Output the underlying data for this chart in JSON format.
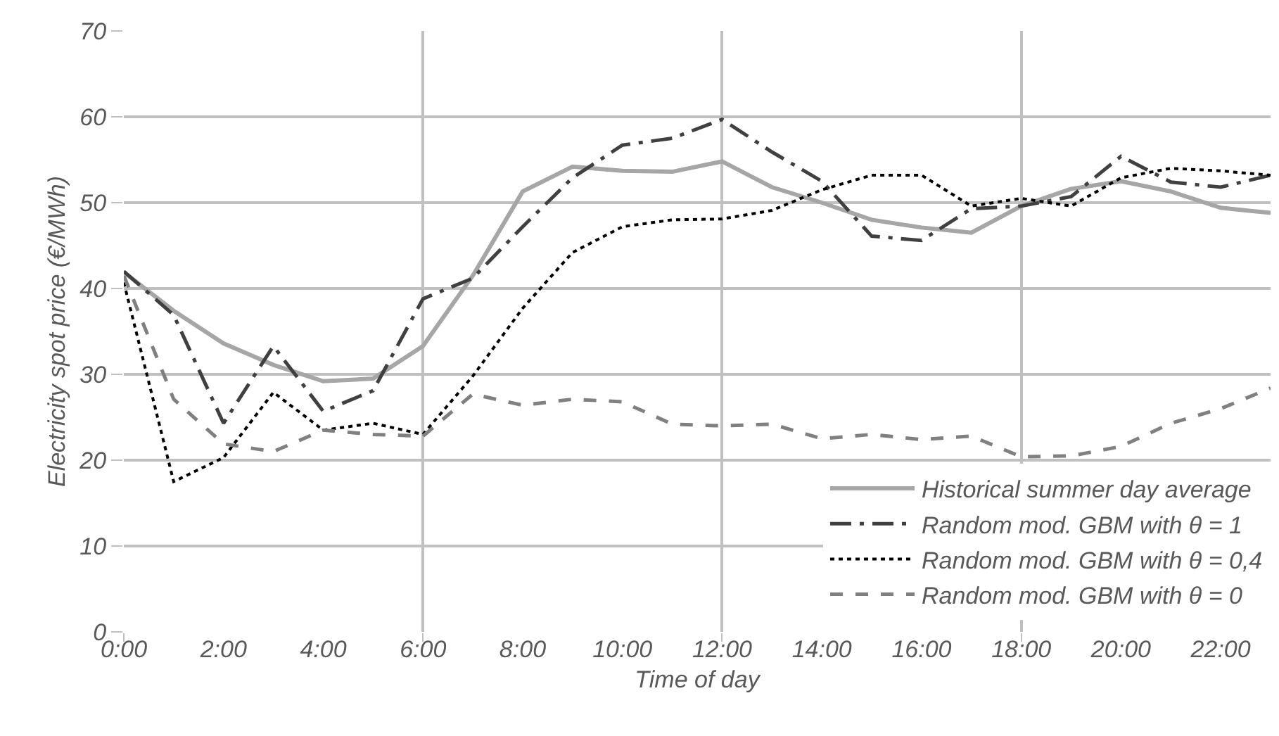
{
  "chart_data": {
    "type": "line",
    "xlabel": "Time of day",
    "ylabel": "Electricity spot price (€/MWh)",
    "x": [
      0,
      1,
      2,
      3,
      4,
      5,
      6,
      7,
      8,
      9,
      10,
      11,
      12,
      13,
      14,
      15,
      16,
      17,
      18,
      19,
      20,
      21,
      22,
      23
    ],
    "xlim": [
      0,
      23
    ],
    "xticks": [
      {
        "value": 0,
        "label": "0:00"
      },
      {
        "value": 2,
        "label": "2:00"
      },
      {
        "value": 4,
        "label": "4:00"
      },
      {
        "value": 6,
        "label": "6:00"
      },
      {
        "value": 8,
        "label": "8:00"
      },
      {
        "value": 10,
        "label": "10:00"
      },
      {
        "value": 12,
        "label": "12:00"
      },
      {
        "value": 14,
        "label": "14:00"
      },
      {
        "value": 16,
        "label": "16:00"
      },
      {
        "value": 18,
        "label": "18:00"
      },
      {
        "value": 20,
        "label": "20:00"
      },
      {
        "value": 22,
        "label": "22:00"
      }
    ],
    "ylim": [
      0,
      70
    ],
    "yticks": [
      0,
      10,
      20,
      30,
      40,
      50,
      60,
      70
    ],
    "grid": true,
    "legend": "bottom right",
    "marker": "none",
    "series": [
      {
        "name": "Historical summer day average",
        "color": "#a6a6a6",
        "line_style": "solid",
        "values": [
          41.9,
          37.4,
          33.6,
          31.1,
          29.2,
          29.5,
          33.3,
          41.5,
          51.3,
          54.2,
          53.7,
          53.6,
          54.8,
          51.8,
          50.0,
          48.0,
          47.1,
          46.5,
          49.6,
          51.6,
          52.5,
          51.3,
          49.4,
          48.8
        ]
      },
      {
        "name": "Random mod. GBM with θ = 1",
        "color": "#404040",
        "line_style": "dashdot",
        "values": [
          42.0,
          36.9,
          24.3,
          33.3,
          25.7,
          28.1,
          38.8,
          41.2,
          47.2,
          52.9,
          56.7,
          57.5,
          59.7,
          55.9,
          52.5,
          46.1,
          45.6,
          49.3,
          49.6,
          50.7,
          55.4,
          52.4,
          51.8,
          53.2
        ]
      },
      {
        "name": "Random mod. GBM with θ = 0,4",
        "color": "#000000",
        "line_style": "dotted",
        "values": [
          40.7,
          17.5,
          20.3,
          27.9,
          23.5,
          24.3,
          23.0,
          29.8,
          37.7,
          44.2,
          47.2,
          48.0,
          48.1,
          49.1,
          51.5,
          53.2,
          53.2,
          49.6,
          50.5,
          49.6,
          52.9,
          54.0,
          53.7,
          53.2
        ]
      },
      {
        "name": "Random mod. GBM with θ = 0",
        "color": "#808080",
        "line_style": "dashed",
        "values": [
          41.5,
          27.1,
          21.9,
          21.0,
          23.5,
          23.0,
          22.8,
          27.7,
          26.4,
          27.1,
          26.8,
          24.2,
          24.0,
          24.2,
          22.5,
          23.0,
          22.4,
          22.8,
          20.4,
          20.5,
          21.6,
          24.3,
          26.0,
          28.4
        ]
      }
    ]
  }
}
